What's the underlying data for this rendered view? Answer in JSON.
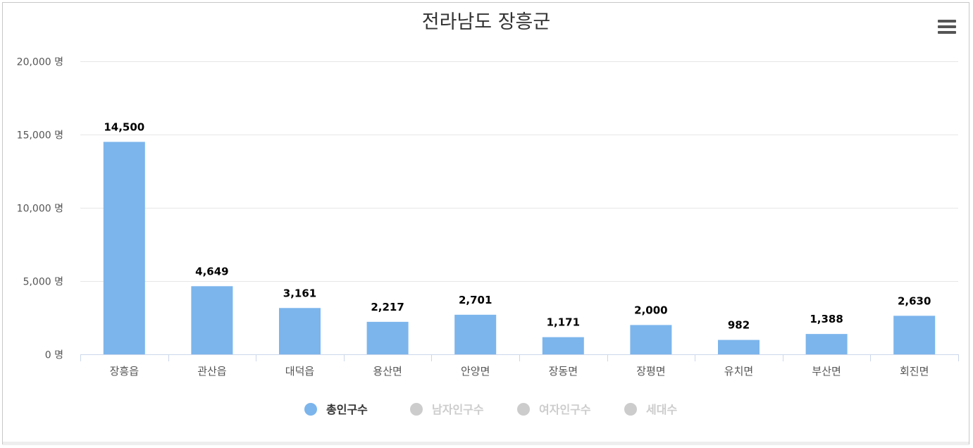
{
  "chart_data": {
    "type": "bar",
    "title": "전라남도 장흥군",
    "categories": [
      "장흥읍",
      "관산읍",
      "대덕읍",
      "용산면",
      "안양면",
      "장동면",
      "장평면",
      "유치면",
      "부산면",
      "회진면"
    ],
    "series": [
      {
        "name": "총인구수",
        "values": [
          14500,
          4649,
          3161,
          2217,
          2701,
          1171,
          2000,
          982,
          1388,
          2630
        ],
        "labels": [
          "14,500",
          "4,649",
          "3,161",
          "2,217",
          "2,701",
          "1,171",
          "2,000",
          "982",
          "1,388",
          "2,630"
        ]
      }
    ],
    "yticks": [
      0,
      5000,
      10000,
      15000,
      20000
    ],
    "ytick_labels": [
      "0 명",
      "5,000 명",
      "10,000 명",
      "15,000 명",
      "20,000 명"
    ],
    "ylim": [
      0,
      20000
    ],
    "grid": true,
    "legend": {
      "placement": "bottom",
      "items": [
        {
          "label": "총인구수",
          "active": true
        },
        {
          "label": "남자인구수",
          "active": false
        },
        {
          "label": "여자인구수",
          "active": false
        },
        {
          "label": "세대수",
          "active": false
        }
      ]
    }
  },
  "colors": {
    "bar": "#7cb5ec",
    "legend_inactive": "#cccccc",
    "grid": "#e6e6e6",
    "axis": "#ccd6eb",
    "text": "#333333"
  },
  "menu_icon": "hamburger-menu-icon"
}
